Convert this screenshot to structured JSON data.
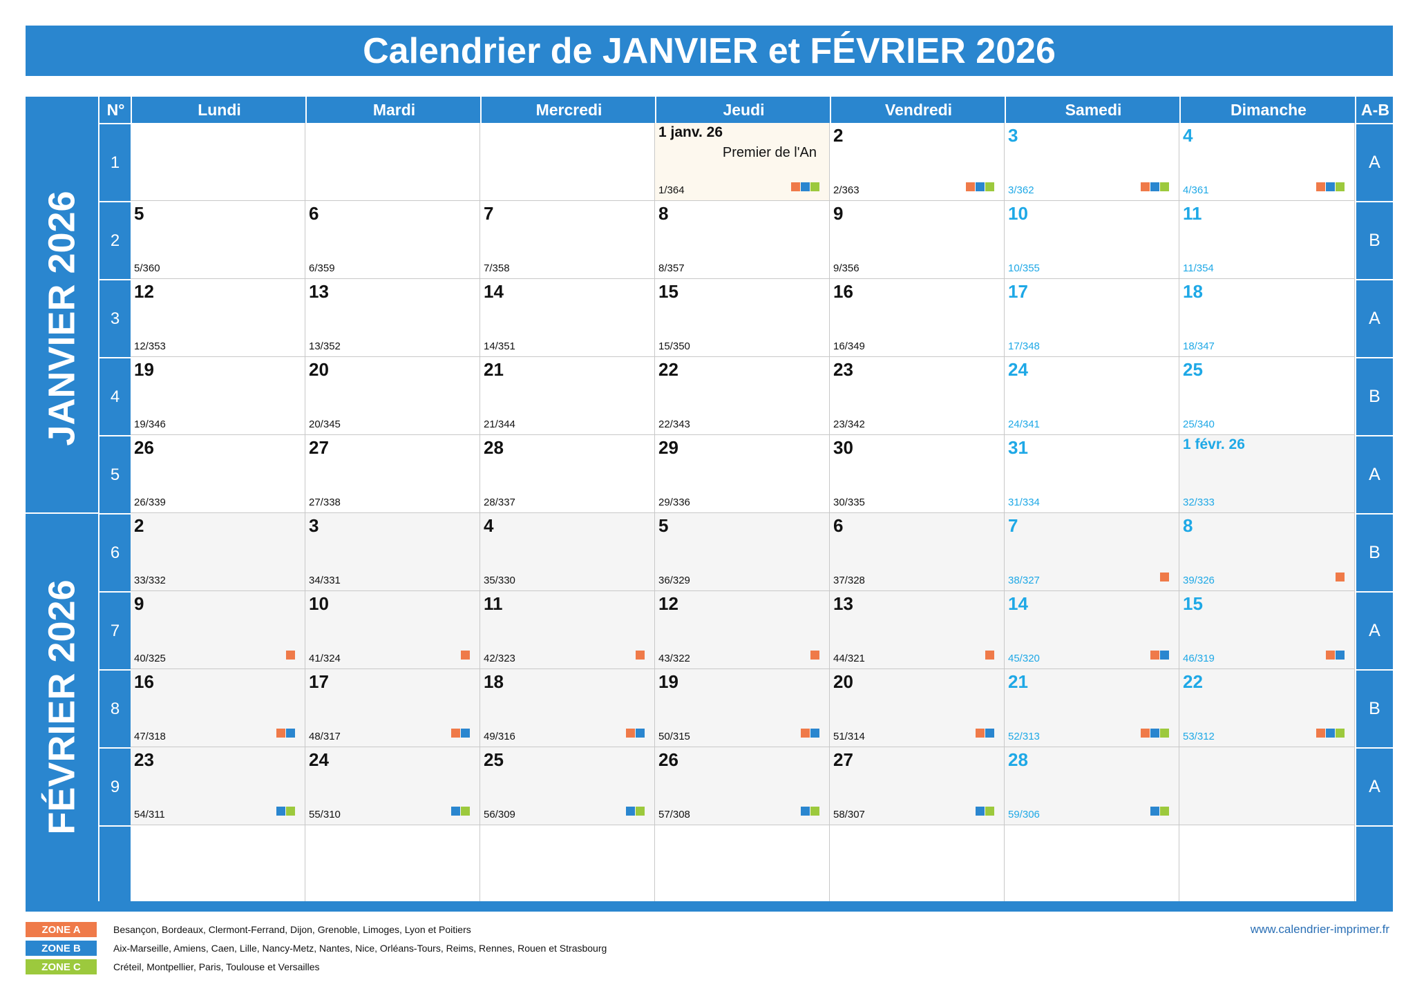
{
  "title": "Calendrier de JANVIER et FÉVRIER 2026",
  "header": {
    "num": "N°",
    "days": [
      "Lundi",
      "Mardi",
      "Mercredi",
      "Jeudi",
      "Vendredi",
      "Samedi",
      "Dimanche"
    ],
    "ab": "A-B"
  },
  "months": {
    "jan": "JANVIER 2026",
    "feb": "FÉVRIER 2026"
  },
  "weeks": [
    {
      "num": "1",
      "ab": "A",
      "cells": [
        null,
        null,
        null,
        {
          "d": "1 janv. 26",
          "c": "1/364",
          "zones": [
            "A",
            "B",
            "C"
          ],
          "holiday": "Premier de l'An",
          "small": true
        },
        {
          "d": "2",
          "c": "2/363",
          "zones": [
            "A",
            "B",
            "C"
          ]
        },
        {
          "d": "3",
          "c": "3/362",
          "zones": [
            "A",
            "B",
            "C"
          ]
        },
        {
          "d": "4",
          "c": "4/361",
          "zones": [
            "A",
            "B",
            "C"
          ]
        }
      ]
    },
    {
      "num": "2",
      "ab": "B",
      "cells": [
        {
          "d": "5",
          "c": "5/360"
        },
        {
          "d": "6",
          "c": "6/359"
        },
        {
          "d": "7",
          "c": "7/358"
        },
        {
          "d": "8",
          "c": "8/357"
        },
        {
          "d": "9",
          "c": "9/356"
        },
        {
          "d": "10",
          "c": "10/355"
        },
        {
          "d": "11",
          "c": "11/354"
        }
      ]
    },
    {
      "num": "3",
      "ab": "A",
      "cells": [
        {
          "d": "12",
          "c": "12/353"
        },
        {
          "d": "13",
          "c": "13/352"
        },
        {
          "d": "14",
          "c": "14/351"
        },
        {
          "d": "15",
          "c": "15/350"
        },
        {
          "d": "16",
          "c": "16/349"
        },
        {
          "d": "17",
          "c": "17/348"
        },
        {
          "d": "18",
          "c": "18/347"
        }
      ]
    },
    {
      "num": "4",
      "ab": "B",
      "cells": [
        {
          "d": "19",
          "c": "19/346"
        },
        {
          "d": "20",
          "c": "20/345"
        },
        {
          "d": "21",
          "c": "21/344"
        },
        {
          "d": "22",
          "c": "22/343"
        },
        {
          "d": "23",
          "c": "23/342"
        },
        {
          "d": "24",
          "c": "24/341"
        },
        {
          "d": "25",
          "c": "25/340"
        }
      ]
    },
    {
      "num": "5",
      "ab": "A",
      "cells": [
        {
          "d": "26",
          "c": "26/339"
        },
        {
          "d": "27",
          "c": "27/338"
        },
        {
          "d": "28",
          "c": "28/337"
        },
        {
          "d": "29",
          "c": "29/336"
        },
        {
          "d": "30",
          "c": "30/335"
        },
        {
          "d": "31",
          "c": "31/334"
        },
        {
          "d": "1 févr. 26",
          "c": "32/333",
          "small": true,
          "next": true
        }
      ]
    },
    {
      "num": "6",
      "ab": "B",
      "feb": true,
      "cells": [
        {
          "d": "2",
          "c": "33/332"
        },
        {
          "d": "3",
          "c": "34/331"
        },
        {
          "d": "4",
          "c": "35/330"
        },
        {
          "d": "5",
          "c": "36/329"
        },
        {
          "d": "6",
          "c": "37/328"
        },
        {
          "d": "7",
          "c": "38/327",
          "zones": [
            "A"
          ]
        },
        {
          "d": "8",
          "c": "39/326",
          "zones": [
            "A"
          ]
        }
      ]
    },
    {
      "num": "7",
      "ab": "A",
      "feb": true,
      "cells": [
        {
          "d": "9",
          "c": "40/325",
          "zones": [
            "A"
          ]
        },
        {
          "d": "10",
          "c": "41/324",
          "zones": [
            "A"
          ]
        },
        {
          "d": "11",
          "c": "42/323",
          "zones": [
            "A"
          ]
        },
        {
          "d": "12",
          "c": "43/322",
          "zones": [
            "A"
          ]
        },
        {
          "d": "13",
          "c": "44/321",
          "zones": [
            "A"
          ]
        },
        {
          "d": "14",
          "c": "45/320",
          "zones": [
            "A",
            "B"
          ]
        },
        {
          "d": "15",
          "c": "46/319",
          "zones": [
            "A",
            "B"
          ]
        }
      ]
    },
    {
      "num": "8",
      "ab": "B",
      "feb": true,
      "cells": [
        {
          "d": "16",
          "c": "47/318",
          "zones": [
            "A",
            "B"
          ]
        },
        {
          "d": "17",
          "c": "48/317",
          "zones": [
            "A",
            "B"
          ]
        },
        {
          "d": "18",
          "c": "49/316",
          "zones": [
            "A",
            "B"
          ]
        },
        {
          "d": "19",
          "c": "50/315",
          "zones": [
            "A",
            "B"
          ]
        },
        {
          "d": "20",
          "c": "51/314",
          "zones": [
            "A",
            "B"
          ]
        },
        {
          "d": "21",
          "c": "52/313",
          "zones": [
            "A",
            "B",
            "C"
          ]
        },
        {
          "d": "22",
          "c": "53/312",
          "zones": [
            "A",
            "B",
            "C"
          ]
        }
      ]
    },
    {
      "num": "9",
      "ab": "A",
      "feb": true,
      "cells": [
        {
          "d": "23",
          "c": "54/311",
          "zones": [
            "B",
            "C"
          ]
        },
        {
          "d": "24",
          "c": "55/310",
          "zones": [
            "B",
            "C"
          ]
        },
        {
          "d": "25",
          "c": "56/309",
          "zones": [
            "B",
            "C"
          ]
        },
        {
          "d": "26",
          "c": "57/308",
          "zones": [
            "B",
            "C"
          ]
        },
        {
          "d": "27",
          "c": "58/307",
          "zones": [
            "B",
            "C"
          ]
        },
        {
          "d": "28",
          "c": "59/306",
          "zones": [
            "B",
            "C"
          ]
        },
        null
      ]
    },
    {
      "num": "",
      "ab": "",
      "cells": [
        null,
        null,
        null,
        null,
        null,
        null,
        null
      ]
    }
  ],
  "legend": [
    {
      "zone": "ZONE A",
      "color": "#ef7a49",
      "text": "Besançon, Bordeaux, Clermont-Ferrand, Dijon, Grenoble, Limoges, Lyon et Poitiers"
    },
    {
      "zone": "ZONE B",
      "color": "#2a86cf",
      "text": "Aix-Marseille, Amiens, Caen, Lille, Nancy-Metz, Nantes, Nice, Orléans-Tours, Reims, Rennes, Rouen et Strasbourg"
    },
    {
      "zone": "ZONE C",
      "color": "#9cc93d",
      "text": "Créteil, Montpellier, Paris, Toulouse et Versailles"
    }
  ],
  "website": "www.calendrier-imprimer.fr",
  "colors": {
    "accent": "#2a86cf",
    "weekend": "#1ea8e6",
    "zoneA": "#ef7a49",
    "zoneB": "#2a86cf",
    "zoneC": "#9cc93d"
  }
}
